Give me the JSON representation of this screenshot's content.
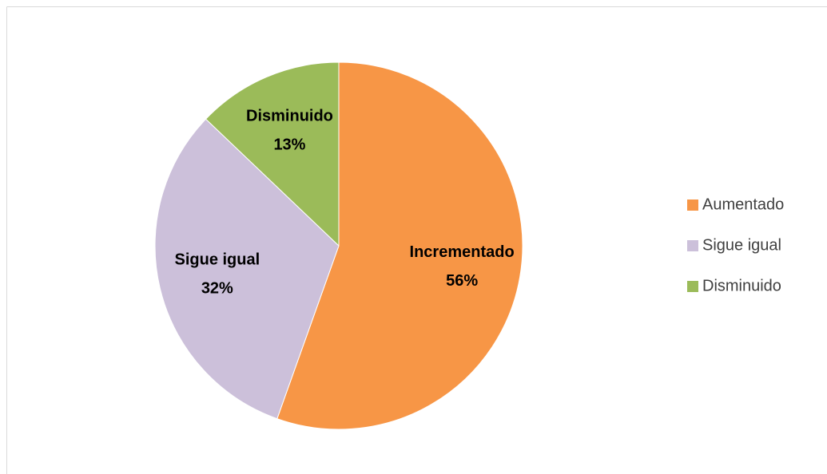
{
  "chart_data": {
    "type": "pie",
    "categories": [
      "Aumentado",
      "Sigue igual",
      "Disminuido"
    ],
    "slice_labels": [
      "Incrementado",
      "Sigue igual",
      "Disminuido"
    ],
    "values": [
      56,
      32,
      13
    ],
    "value_labels": [
      "56%",
      "32%",
      "13%"
    ],
    "colors": [
      "#f79646",
      "#ccc0da",
      "#9bbb59"
    ],
    "legend": "right"
  }
}
